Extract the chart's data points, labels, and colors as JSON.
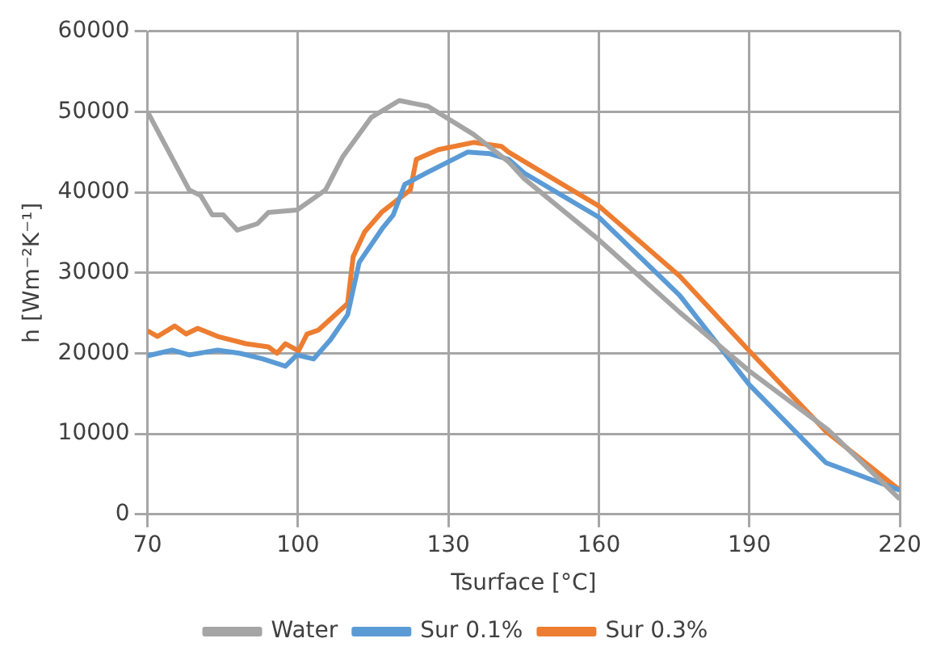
{
  "chart_data": {
    "type": "line",
    "xlabel": "Tsurface [°C]",
    "ylabel": "h [Wm⁻²K⁻¹]",
    "xlim": [
      70,
      220
    ],
    "xticks": [
      70,
      100,
      130,
      160,
      190,
      220
    ],
    "ylim": [
      0,
      60000
    ],
    "yticks": [
      0,
      10000,
      20000,
      30000,
      40000,
      50000,
      60000
    ],
    "grid": true,
    "legend": "bottom",
    "marker": "none",
    "series": [
      {
        "name": "Water",
        "color": "#a5a5a5",
        "x": [
          70,
          78.3,
          80.6,
          82.9,
          85.1,
          87.9,
          91.9,
          94.1,
          99.8,
          105.5,
          108.9,
          114.6,
          120.2,
          125.9,
          135,
          142,
          145.1,
          160,
          176.1,
          190,
          205.7,
          220
        ],
        "values": [
          50000,
          40300,
          39600,
          37200,
          37200,
          35300,
          36100,
          37500,
          37800,
          40300,
          44400,
          49300,
          51400,
          50700,
          47200,
          43800,
          41700,
          34100,
          25100,
          17800,
          10500,
          1900
        ]
      },
      {
        "name": "Sur 0.1%",
        "color": "#5b9bd5",
        "x": [
          70,
          74.9,
          78.3,
          84,
          88.5,
          93,
          97.5,
          99.8,
          103.1,
          106.5,
          109.9,
          112.2,
          116.8,
          119,
          121.3,
          125.9,
          133.8,
          138.3,
          142,
          145.1,
          160,
          176.1,
          190,
          205.3,
          220
        ],
        "values": [
          19700,
          20400,
          19800,
          20400,
          20000,
          19300,
          18400,
          19800,
          19300,
          21700,
          24800,
          31300,
          35500,
          37200,
          41000,
          42500,
          45000,
          44800,
          44100,
          42400,
          36900,
          27200,
          16100,
          6400,
          3000
        ]
      },
      {
        "name": "Sur 0.3%",
        "color": "#ed7d31",
        "x": [
          70,
          72,
          75.4,
          77.7,
          80,
          84,
          89.6,
          94.1,
          95.8,
          97.5,
          100.1,
          101.8,
          104.1,
          109.9,
          111,
          113.3,
          116.8,
          122.4,
          123.6,
          128,
          135,
          140.6,
          142,
          160,
          176.1,
          190,
          205.3,
          220
        ],
        "values": [
          22800,
          22100,
          23400,
          22400,
          23100,
          22100,
          21200,
          20800,
          20000,
          21200,
          20300,
          22400,
          22900,
          26200,
          32000,
          35100,
          37600,
          40300,
          44100,
          45300,
          46200,
          45700,
          45000,
          38300,
          29600,
          20300,
          10300,
          3000
        ]
      }
    ]
  }
}
